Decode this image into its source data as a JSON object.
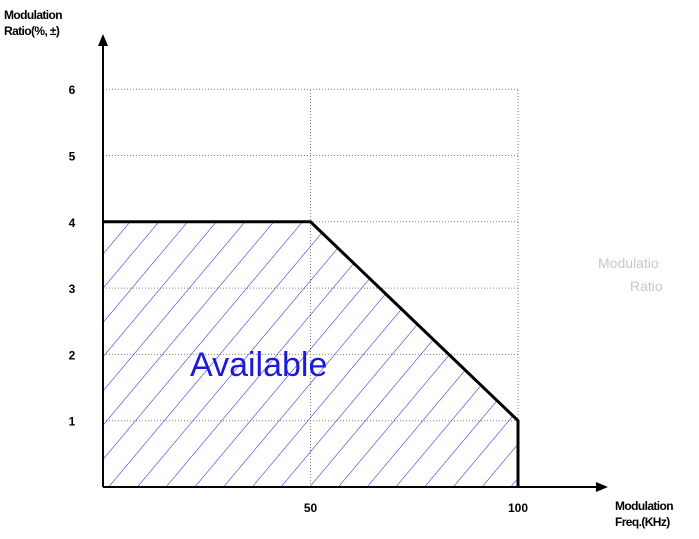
{
  "chart_data": {
    "type": "area",
    "y_axis_title": [
      "Modulation",
      "Ratio(%, ±)"
    ],
    "x_axis_title": [
      "Modulation",
      "Freq.(KHz)"
    ],
    "x_ticks": [
      "50",
      "100"
    ],
    "x_tick_values": [
      50,
      100
    ],
    "y_ticks": [
      "1",
      "2",
      "3",
      "4",
      "5",
      "6"
    ],
    "y_tick_values": [
      1,
      2,
      3,
      4,
      5,
      6
    ],
    "xlim": [
      0,
      100
    ],
    "ylim": [
      0,
      6
    ],
    "grid": "dotted",
    "series": [
      {
        "x": [
          0,
          50,
          100,
          100
        ],
        "y": [
          4,
          4,
          1,
          0
        ]
      }
    ],
    "region_label": "Available",
    "fill": "blue diagonal hatch",
    "colors": {
      "boundary": "#000000",
      "hatch": "#1a1ad8",
      "region_label": "#1a1ad8",
      "grid": "#808080"
    }
  },
  "background_fragment": {
    "lines": [
      "Modulatio",
      "Ratio"
    ]
  }
}
